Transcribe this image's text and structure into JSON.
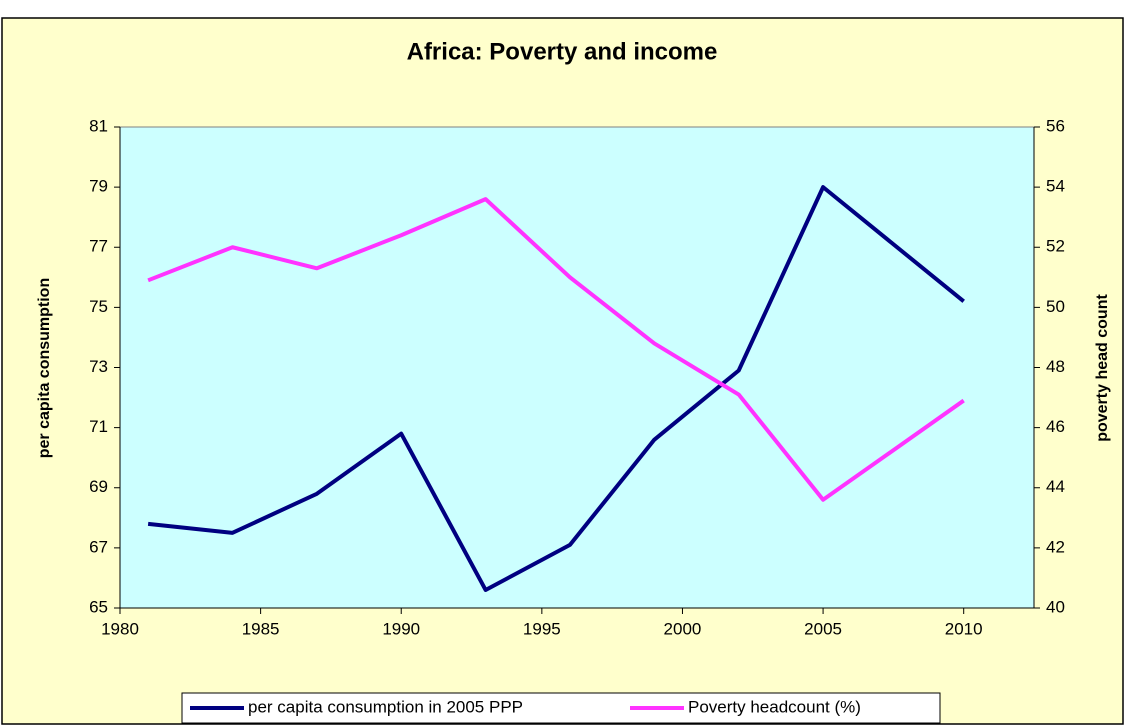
{
  "chart_data": {
    "type": "line",
    "title": "Africa: Poverty and income",
    "x": [
      1981,
      1984,
      1987,
      1990,
      1993,
      1996,
      1999,
      2002,
      2005,
      2010
    ],
    "xlim": [
      1980,
      2012.5
    ],
    "xticks": [
      1980,
      1985,
      1990,
      1995,
      2000,
      2005,
      2010
    ],
    "ylabel": "per capita consumption",
    "y2label": "poverty head count",
    "ylim": [
      65,
      81
    ],
    "yticks": [
      65,
      67,
      69,
      71,
      73,
      75,
      77,
      79,
      81
    ],
    "y2lim": [
      40,
      56
    ],
    "y2ticks": [
      40,
      42,
      44,
      46,
      48,
      50,
      52,
      54,
      56
    ],
    "series": [
      {
        "name": "per capita consumption in 2005 PPP",
        "color": "#000080",
        "values": [
          67.8,
          67.5,
          68.8,
          70.8,
          65.6,
          67.1,
          70.6,
          72.9,
          79.0,
          75.2
        ]
      },
      {
        "name": "Poverty headcount (%)",
        "color": "#ff33ff",
        "axis": "y2",
        "values": [
          50.9,
          52.0,
          51.3,
          52.4,
          53.6,
          51.0,
          48.8,
          47.1,
          43.6,
          46.9
        ]
      }
    ],
    "plot_background": "#ccffff",
    "chart_background": "#ffffcc"
  }
}
